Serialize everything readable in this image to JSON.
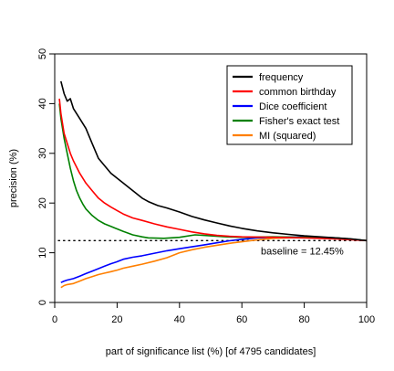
{
  "chart_data": {
    "type": "line",
    "xlabel": "part of significance list (%) [of 4795 candidates]",
    "ylabel": "precision (%)",
    "xlim": [
      0,
      100
    ],
    "ylim": [
      0,
      50
    ],
    "xticks": [
      "0",
      "20",
      "40",
      "60",
      "80",
      "100"
    ],
    "yticks": [
      "0",
      "10",
      "20",
      "30",
      "40",
      "50"
    ],
    "grid": false,
    "legend_position": "top-right",
    "baseline": {
      "value": 12.45,
      "label": "baseline = 12.45%",
      "style": "dotted"
    },
    "series": [
      {
        "name": "frequency",
        "color": "#000000",
        "points": [
          [
            2,
            44.5
          ],
          [
            3,
            42
          ],
          [
            4,
            40.5
          ],
          [
            5,
            41
          ],
          [
            6,
            39
          ],
          [
            8,
            37
          ],
          [
            10,
            35
          ],
          [
            12,
            32
          ],
          [
            14,
            29
          ],
          [
            16,
            27.5
          ],
          [
            18,
            26
          ],
          [
            20,
            25
          ],
          [
            22,
            24
          ],
          [
            24,
            23
          ],
          [
            26,
            22
          ],
          [
            28,
            21
          ],
          [
            30,
            20.3
          ],
          [
            33,
            19.5
          ],
          [
            36,
            19
          ],
          [
            40,
            18.2
          ],
          [
            44,
            17.3
          ],
          [
            48,
            16.6
          ],
          [
            52,
            16
          ],
          [
            56,
            15.4
          ],
          [
            60,
            14.9
          ],
          [
            65,
            14.4
          ],
          [
            70,
            14
          ],
          [
            75,
            13.7
          ],
          [
            80,
            13.4
          ],
          [
            85,
            13.2
          ],
          [
            90,
            13
          ],
          [
            95,
            12.8
          ],
          [
            100,
            12.45
          ]
        ]
      },
      {
        "name": "common birthday",
        "color": "#ff0000",
        "points": [
          [
            1.5,
            41
          ],
          [
            2,
            38
          ],
          [
            3,
            34
          ],
          [
            4,
            32
          ],
          [
            5,
            30
          ],
          [
            6,
            28.5
          ],
          [
            8,
            26
          ],
          [
            10,
            24
          ],
          [
            12,
            22.5
          ],
          [
            14,
            21
          ],
          [
            16,
            20
          ],
          [
            18,
            19.2
          ],
          [
            20,
            18.5
          ],
          [
            22,
            17.8
          ],
          [
            25,
            17
          ],
          [
            28,
            16.5
          ],
          [
            32,
            15.8
          ],
          [
            36,
            15.2
          ],
          [
            40,
            14.7
          ],
          [
            44,
            14.2
          ],
          [
            48,
            13.8
          ],
          [
            52,
            13.5
          ],
          [
            56,
            13.3
          ],
          [
            60,
            13.2
          ],
          [
            70,
            13.1
          ],
          [
            80,
            13
          ],
          [
            90,
            12.8
          ],
          [
            100,
            12.45
          ]
        ]
      },
      {
        "name": "Dice coefficient",
        "color": "#0000ff",
        "points": [
          [
            2,
            4
          ],
          [
            3,
            4.3
          ],
          [
            4,
            4.5
          ],
          [
            6,
            4.8
          ],
          [
            8,
            5.3
          ],
          [
            10,
            5.8
          ],
          [
            12,
            6.3
          ],
          [
            14,
            6.8
          ],
          [
            16,
            7.3
          ],
          [
            18,
            7.8
          ],
          [
            20,
            8.2
          ],
          [
            22,
            8.7
          ],
          [
            25,
            9.1
          ],
          [
            28,
            9.4
          ],
          [
            32,
            9.9
          ],
          [
            36,
            10.4
          ],
          [
            40,
            10.8
          ],
          [
            44,
            11.2
          ],
          [
            48,
            11.6
          ],
          [
            52,
            12
          ],
          [
            56,
            12.4
          ],
          [
            60,
            12.7
          ],
          [
            65,
            13
          ],
          [
            70,
            13.1
          ],
          [
            80,
            13.2
          ],
          [
            90,
            13
          ],
          [
            100,
            12.45
          ]
        ]
      },
      {
        "name": "Fisher's exact test",
        "color": "#008000",
        "points": [
          [
            1.5,
            40
          ],
          [
            2,
            37
          ],
          [
            3,
            33
          ],
          [
            4,
            30
          ],
          [
            5,
            27
          ],
          [
            6,
            24.5
          ],
          [
            7,
            22.5
          ],
          [
            8,
            21
          ],
          [
            9,
            19.8
          ],
          [
            10,
            18.8
          ],
          [
            12,
            17.5
          ],
          [
            14,
            16.5
          ],
          [
            16,
            15.8
          ],
          [
            18,
            15.3
          ],
          [
            20,
            14.8
          ],
          [
            22,
            14.3
          ],
          [
            25,
            13.6
          ],
          [
            28,
            13.2
          ],
          [
            30,
            13
          ],
          [
            35,
            12.9
          ],
          [
            40,
            13.1
          ],
          [
            45,
            13.6
          ],
          [
            50,
            13.4
          ],
          [
            55,
            13.2
          ],
          [
            60,
            13.1
          ],
          [
            70,
            13.2
          ],
          [
            80,
            13.1
          ],
          [
            90,
            13
          ],
          [
            100,
            12.45
          ]
        ]
      },
      {
        "name": "MI (squared)",
        "color": "#ff7f00",
        "points": [
          [
            2,
            3
          ],
          [
            3,
            3.4
          ],
          [
            4,
            3.6
          ],
          [
            6,
            3.8
          ],
          [
            8,
            4.3
          ],
          [
            10,
            4.8
          ],
          [
            12,
            5.2
          ],
          [
            14,
            5.6
          ],
          [
            16,
            5.9
          ],
          [
            18,
            6.2
          ],
          [
            20,
            6.5
          ],
          [
            22,
            6.9
          ],
          [
            25,
            7.3
          ],
          [
            28,
            7.7
          ],
          [
            32,
            8.3
          ],
          [
            36,
            9
          ],
          [
            40,
            10
          ],
          [
            44,
            10.6
          ],
          [
            48,
            11.1
          ],
          [
            52,
            11.5
          ],
          [
            56,
            11.9
          ],
          [
            60,
            12.2
          ],
          [
            65,
            12.6
          ],
          [
            70,
            12.9
          ],
          [
            80,
            13.1
          ],
          [
            90,
            13
          ],
          [
            100,
            12.45
          ]
        ]
      }
    ]
  }
}
